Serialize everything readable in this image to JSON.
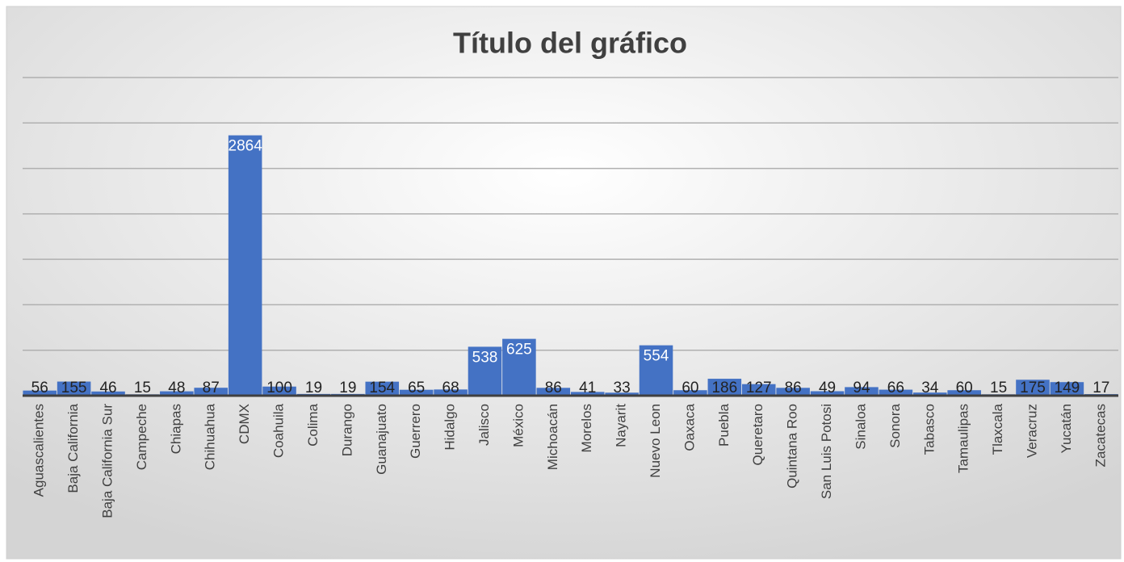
{
  "chart_data": {
    "type": "bar",
    "title": "Título del gráfico",
    "categories": [
      "Aguascalientes",
      "Baja California",
      "Baja California Sur",
      "Campeche",
      "Chiapas",
      "Chihuahua",
      "CDMX",
      "Coahuila",
      "Colima",
      "Durango",
      "Guanajuato",
      "Guerrero",
      "Hidalgo",
      "Jalisco",
      "México",
      "Michoacán",
      "Morelos",
      "Nayarit",
      "Nuevo Leon",
      "Oaxaca",
      "Puebla",
      "Queretaro",
      "Quintana Roo",
      "San Luis Potosi",
      "Sinaloa",
      "Sonora",
      "Tabasco",
      "Tamaulipas",
      "Tlaxcala",
      "Veracruz",
      "Yucatán",
      "Zacatecas"
    ],
    "values": [
      56,
      155,
      46,
      15,
      48,
      87,
      2864,
      100,
      19,
      19,
      154,
      65,
      68,
      538,
      625,
      86,
      41,
      33,
      554,
      60,
      186,
      127,
      86,
      49,
      94,
      66,
      34,
      60,
      15,
      175,
      149,
      17
    ],
    "color": "#4472c4",
    "ylim": [
      0,
      3500
    ],
    "yticks": [
      0,
      500,
      1000,
      1500,
      2000,
      2500,
      3000,
      3500
    ],
    "grid": true
  }
}
